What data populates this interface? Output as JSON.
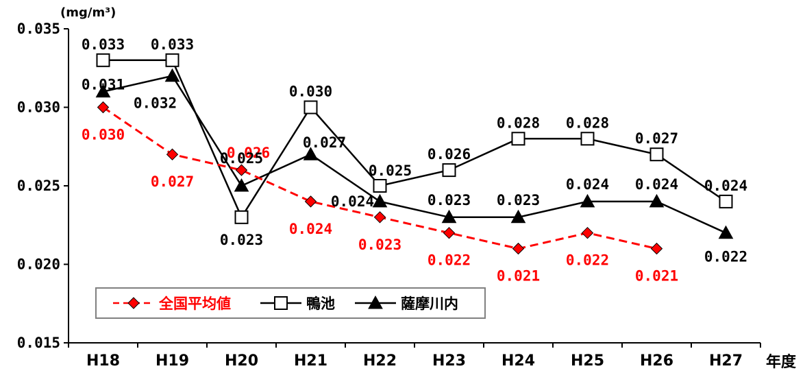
{
  "chart_data": {
    "type": "line",
    "categories": [
      "H18",
      "H19",
      "H20",
      "H21",
      "H22",
      "H23",
      "H24",
      "H25",
      "H26",
      "H27"
    ],
    "y_unit": "(mg/m³)",
    "x_unit": "年度",
    "ylim": [
      0.015,
      0.035
    ],
    "yticks": [
      "0.015",
      "0.020",
      "0.025",
      "0.030",
      "0.035"
    ],
    "grid": false,
    "legend_position": "bottom-left",
    "series": [
      {
        "name": "全国平均値",
        "color": "#ff0000",
        "line_style": "dashed",
        "marker": "diamond",
        "values": [
          0.03,
          0.027,
          0.026,
          0.024,
          0.023,
          0.022,
          0.021,
          0.022,
          0.021,
          null
        ],
        "labels": [
          "0.030",
          "0.027",
          "0.026",
          "0.024",
          "0.023",
          "0.022",
          "0.021",
          "0.022",
          "0.021",
          ""
        ]
      },
      {
        "name": "鴨池",
        "color": "#000000",
        "line_style": "solid",
        "marker": "square-open",
        "values": [
          0.033,
          0.033,
          0.023,
          0.03,
          0.025,
          0.026,
          0.028,
          0.028,
          0.027,
          0.024
        ],
        "labels": [
          "0.033",
          "0.033",
          "0.023",
          "0.030",
          "0.025",
          "0.026",
          "0.028",
          "0.028",
          "0.027",
          "0.024"
        ]
      },
      {
        "name": "薩摩川内",
        "color": "#000000",
        "line_style": "solid",
        "marker": "triangle",
        "values": [
          0.031,
          0.032,
          0.025,
          0.027,
          0.024,
          0.023,
          0.023,
          0.024,
          0.024,
          0.022
        ],
        "labels": [
          "0.031",
          "0.032",
          "0.025",
          "0.027",
          "0.024",
          "0.023",
          "0.023",
          "0.024",
          "0.024",
          "0.022"
        ]
      }
    ]
  }
}
